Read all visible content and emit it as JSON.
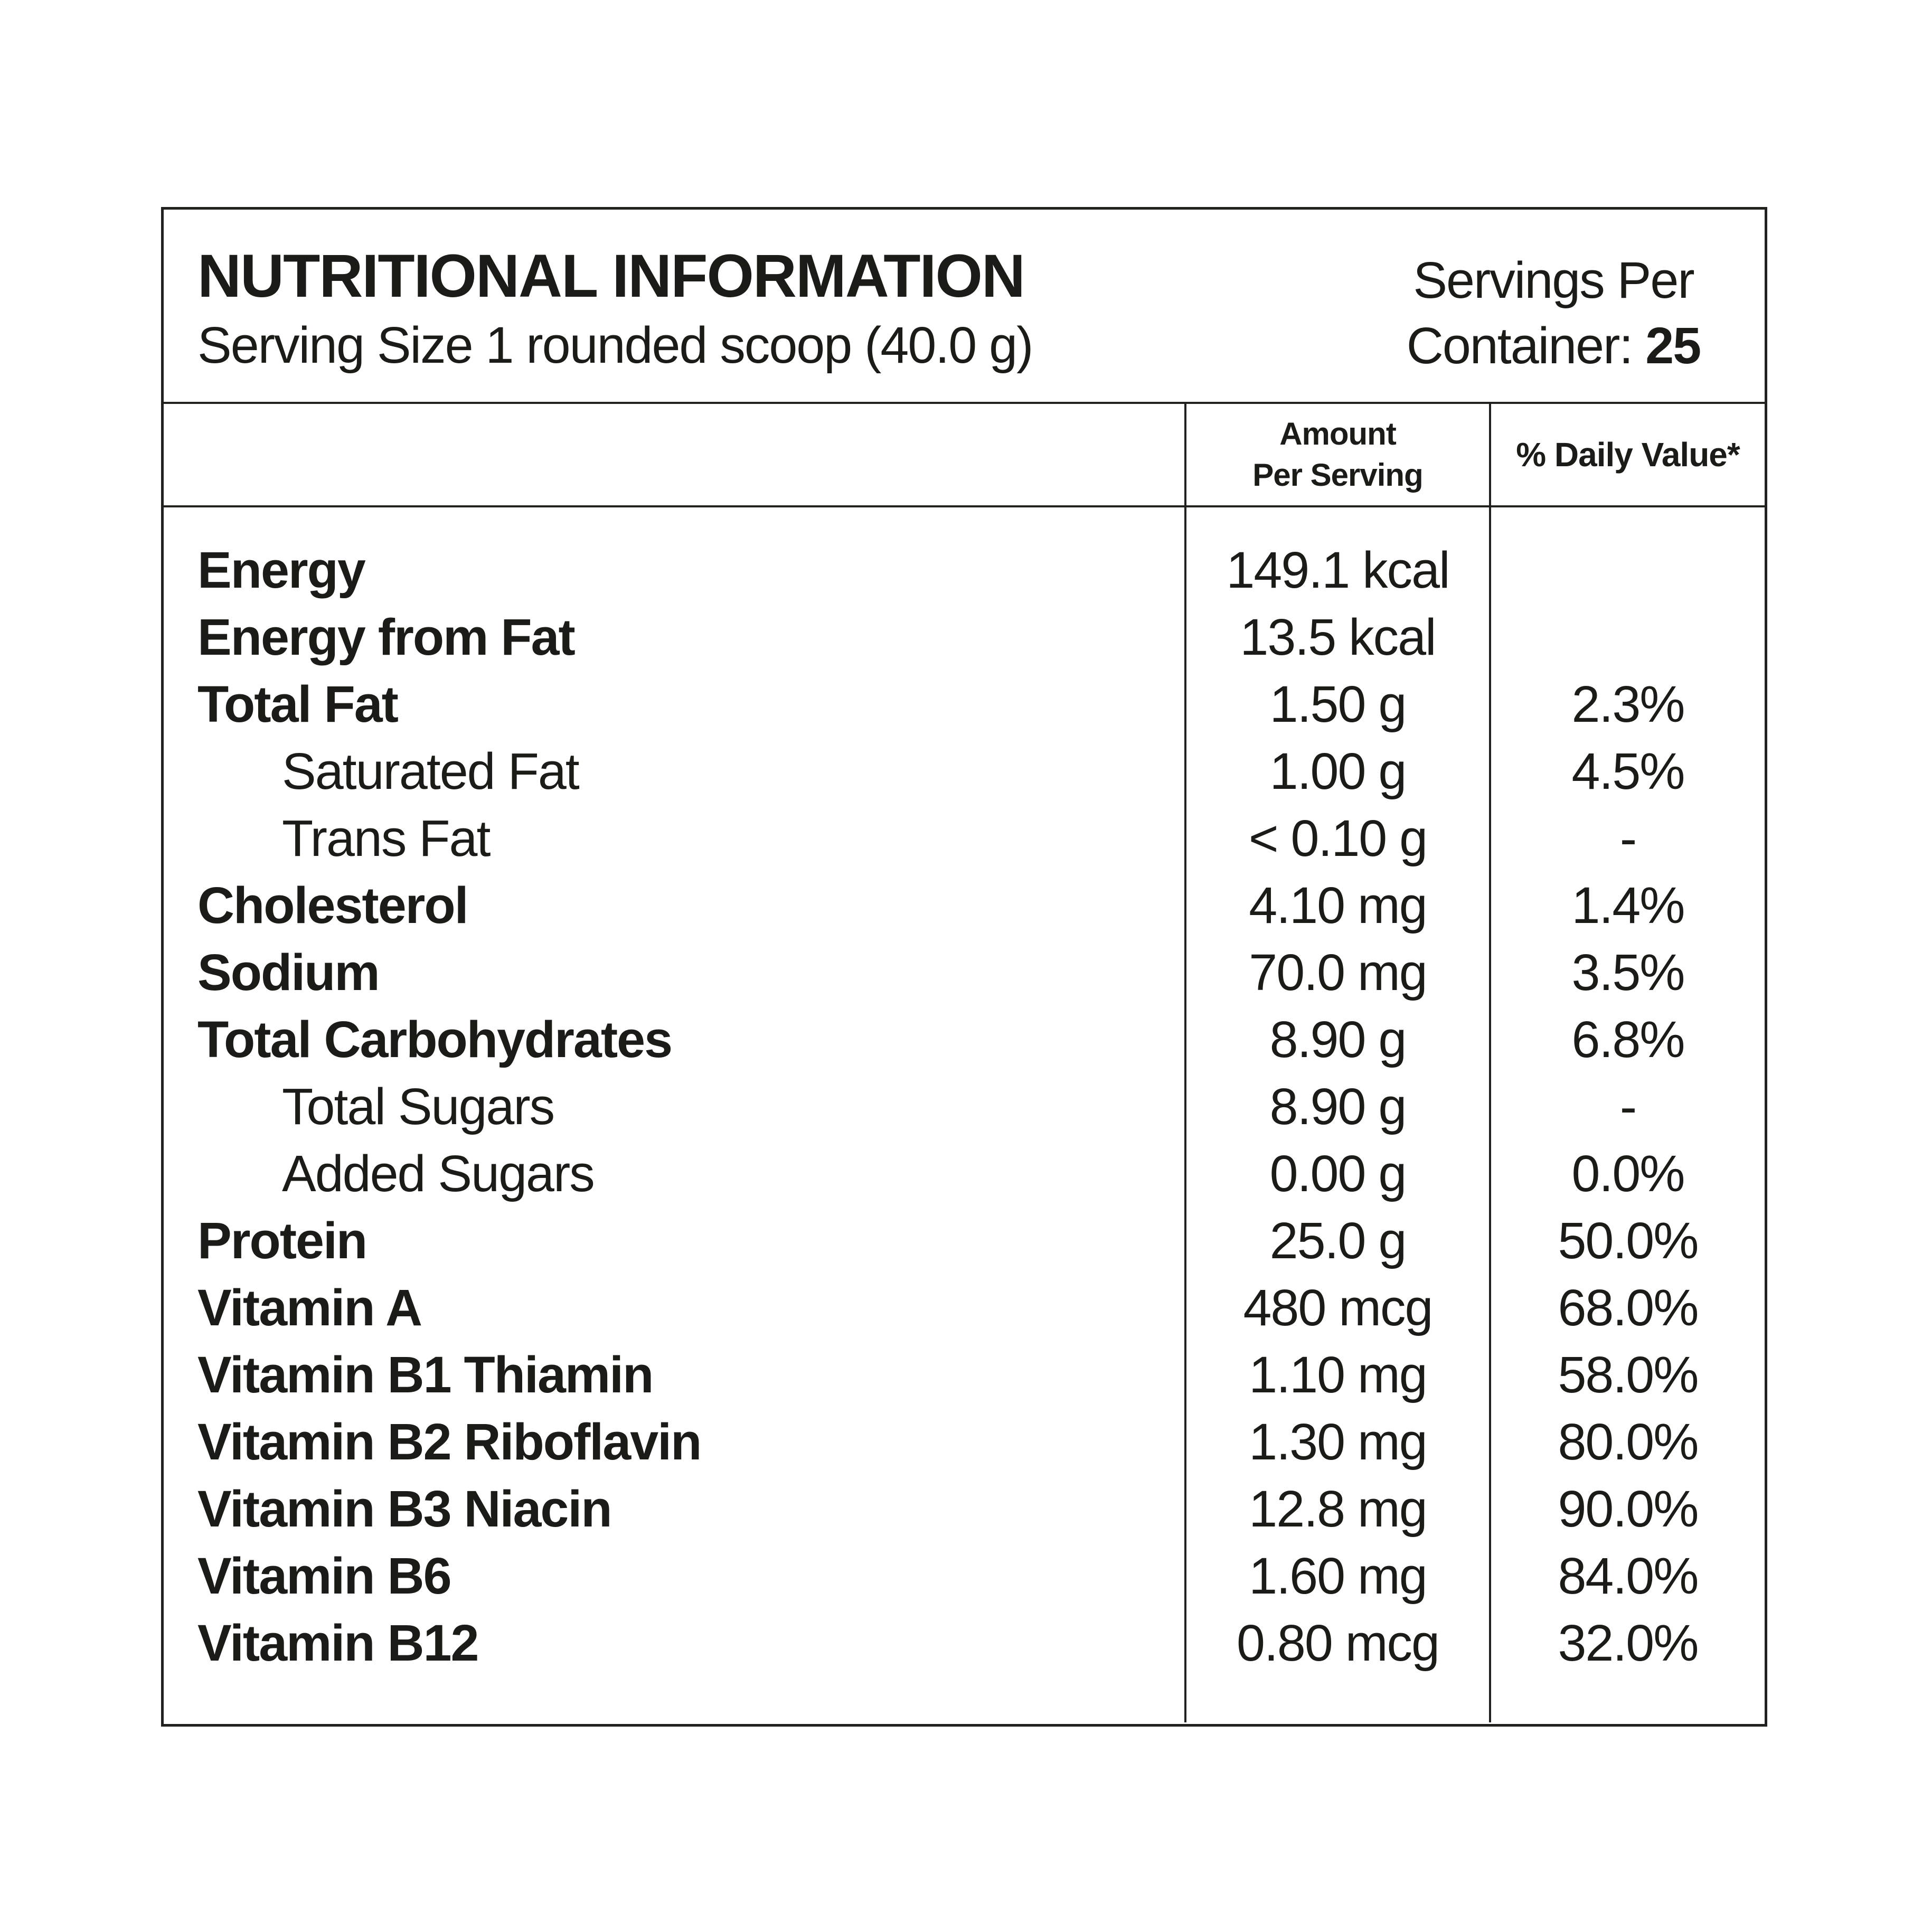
{
  "page": {
    "background": "#ffffff",
    "text_color": "#1b1b17",
    "border_color": "#21211d"
  },
  "header": {
    "title": "NUTRITIONAL INFORMATION",
    "serving_size": "Serving Size 1 rounded scoop (40.0 g)",
    "servings_line1": "Servings Per",
    "servings_line2_label": "Container:",
    "servings_line2_value": "25"
  },
  "columns": {
    "amount_line1": "Amount",
    "amount_line2": "Per Serving",
    "daily_value": "% Daily Value*"
  },
  "rows": [
    {
      "label": "Energy",
      "sub": false,
      "amount": "149.1 kcal",
      "dv": ""
    },
    {
      "label": "Energy from Fat",
      "sub": false,
      "amount": "13.5 kcal",
      "dv": ""
    },
    {
      "label": "Total Fat",
      "sub": false,
      "amount": "1.50 g",
      "dv": "2.3%"
    },
    {
      "label": "Saturated Fat",
      "sub": true,
      "amount": "1.00 g",
      "dv": "4.5%"
    },
    {
      "label": "Trans Fat",
      "sub": true,
      "amount": "< 0.10 g",
      "dv": "-"
    },
    {
      "label": "Cholesterol",
      "sub": false,
      "amount": "4.10 mg",
      "dv": "1.4%"
    },
    {
      "label": "Sodium",
      "sub": false,
      "amount": "70.0 mg",
      "dv": "3.5%"
    },
    {
      "label": "Total Carbohydrates",
      "sub": false,
      "amount": "8.90 g",
      "dv": "6.8%"
    },
    {
      "label": "Total Sugars",
      "sub": true,
      "amount": "8.90 g",
      "dv": "-"
    },
    {
      "label": "Added Sugars",
      "sub": true,
      "amount": "0.00 g",
      "dv": "0.0%"
    },
    {
      "label": "Protein",
      "sub": false,
      "amount": "25.0 g",
      "dv": "50.0%"
    },
    {
      "label": "Vitamin A",
      "sub": false,
      "amount": "480 mcg",
      "dv": "68.0%"
    },
    {
      "label": "Vitamin B1 Thiamin",
      "sub": false,
      "amount": "1.10 mg",
      "dv": "58.0%"
    },
    {
      "label": "Vitamin B2 Riboflavin",
      "sub": false,
      "amount": "1.30 mg",
      "dv": "80.0%"
    },
    {
      "label": "Vitamin B3 Niacin",
      "sub": false,
      "amount": "12.8 mg",
      "dv": "90.0%"
    },
    {
      "label": "Vitamin B6",
      "sub": false,
      "amount": "1.60 mg",
      "dv": "84.0%"
    },
    {
      "label": "Vitamin B12",
      "sub": false,
      "amount": "0.80 mcg",
      "dv": "32.0%"
    }
  ]
}
